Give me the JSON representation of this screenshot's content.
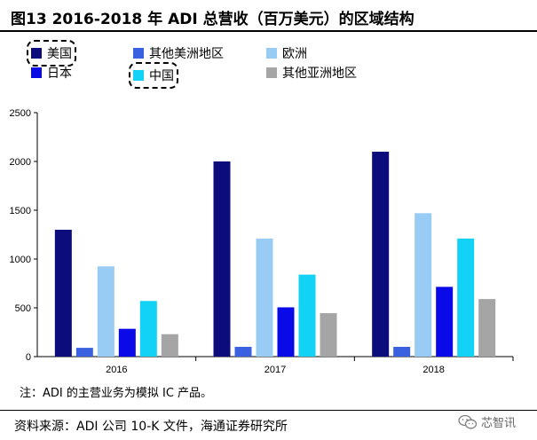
{
  "title": "图13 2016-2018 年 ADI 总营收（百万美元）的区域结构",
  "legend": [
    {
      "label": "美国",
      "color": "#0c0c7c",
      "boxed": true
    },
    {
      "label": "其他美洲地区",
      "color": "#3a62e0",
      "boxed": false
    },
    {
      "label": "欧洲",
      "color": "#99ccf5",
      "boxed": false
    },
    {
      "label": "日本",
      "color": "#0a0ae8",
      "boxed": false
    },
    {
      "label": "中国",
      "color": "#12d2f5",
      "boxed": true
    },
    {
      "label": "其他亚洲地区",
      "color": "#a5a5a5",
      "boxed": false
    }
  ],
  "chart_data": {
    "type": "bar",
    "categories": [
      "2016",
      "2017",
      "2018"
    ],
    "series": [
      {
        "name": "美国",
        "color": "#0c0c7c",
        "values": [
          1300,
          2000,
          2100
        ]
      },
      {
        "name": "其他美洲地区",
        "color": "#3a62e0",
        "values": [
          90,
          100,
          100
        ]
      },
      {
        "name": "欧洲",
        "color": "#99ccf5",
        "values": [
          925,
          1210,
          1470
        ]
      },
      {
        "name": "日本",
        "color": "#0a0ae8",
        "values": [
          285,
          505,
          715
        ]
      },
      {
        "name": "中国",
        "color": "#12d2f5",
        "values": [
          570,
          840,
          1210
        ]
      },
      {
        "name": "其他亚洲地区",
        "color": "#a5a5a5",
        "values": [
          230,
          445,
          590
        ]
      }
    ],
    "ylim": [
      0,
      2500
    ],
    "yticks": [
      0,
      500,
      1000,
      1500,
      2000,
      2500
    ],
    "grid": false,
    "legend_position": "top"
  },
  "note": "注：ADI 的主营业务为模拟 IC 产品。",
  "source": "资料来源：ADI 公司 10-K 文件，海通证券研究所",
  "watermark": "芯智讯"
}
